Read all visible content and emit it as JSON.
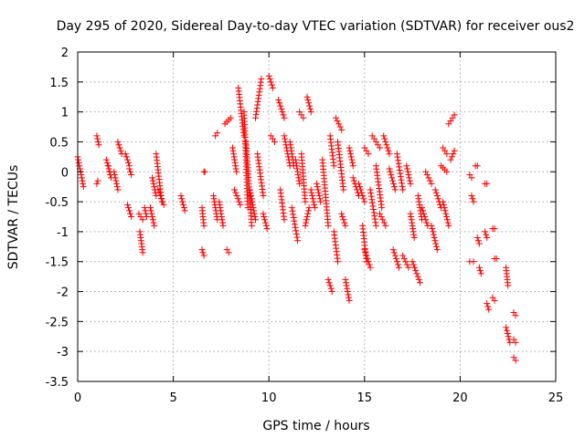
{
  "chart_data": {
    "type": "scatter",
    "title": "Day 295 of 2020, Sidereal Day-to-day VTEC variation (SDTVAR) for receiver ous2",
    "xlabel": "GPS time / hours",
    "ylabel": "SDTVAR / TECUs",
    "xlim": [
      0,
      25
    ],
    "ylim": [
      -3.5,
      2
    ],
    "xticks": [
      0,
      5,
      10,
      15,
      20,
      25
    ],
    "xtick_labels": [
      "0",
      "5",
      "10",
      "15",
      "20",
      "25"
    ],
    "yticks": [
      -3.5,
      -3,
      -2.5,
      -2,
      -1.5,
      -1,
      -0.5,
      0,
      0.5,
      1,
      1.5,
      2
    ],
    "ytick_labels": [
      "-3.5",
      "-3",
      "-2.5",
      "-2",
      "-1.5",
      "-1",
      "-0.5",
      "0",
      "0.5",
      "1",
      "1.5",
      "2"
    ],
    "grid": true,
    "marker": "+",
    "marker_color": "#ff0000",
    "segments": [
      [
        0.0,
        0.25,
        0.3,
        -0.25
      ],
      [
        1.0,
        0.6,
        1.1,
        0.45
      ],
      [
        1.0,
        -0.2,
        1.05,
        -0.15
      ],
      [
        1.5,
        0.2,
        1.75,
        -0.1
      ],
      [
        1.6,
        0.1,
        1.7,
        -0.05
      ],
      [
        1.9,
        0.0,
        2.1,
        -0.3
      ],
      [
        2.1,
        0.5,
        2.3,
        0.3
      ],
      [
        2.5,
        0.3,
        2.7,
        0.1
      ],
      [
        2.6,
        -0.55,
        2.8,
        -0.75
      ],
      [
        2.7,
        0.05,
        2.8,
        -0.05
      ],
      [
        3.2,
        -0.7,
        3.4,
        -0.8
      ],
      [
        3.25,
        -1.0,
        3.4,
        -1.35
      ],
      [
        3.5,
        -0.6,
        3.6,
        -0.75
      ],
      [
        3.8,
        -0.6,
        4.0,
        -0.9
      ],
      [
        3.9,
        -0.1,
        4.1,
        -0.4
      ],
      [
        4.1,
        0.3,
        4.4,
        -0.5
      ],
      [
        4.2,
        -0.3,
        4.5,
        -0.55
      ],
      [
        5.4,
        -0.4,
        5.6,
        -0.65
      ],
      [
        6.5,
        -1.3,
        6.6,
        -1.4
      ],
      [
        6.6,
        0.0,
        6.65,
        0.0
      ],
      [
        6.5,
        -0.6,
        6.6,
        -0.9
      ],
      [
        7.2,
        0.6,
        7.3,
        0.65
      ],
      [
        7.1,
        -0.4,
        7.3,
        -0.8
      ],
      [
        7.4,
        -0.5,
        7.6,
        -0.9
      ],
      [
        7.8,
        -1.3,
        7.9,
        -1.35
      ],
      [
        7.7,
        0.8,
        8.0,
        0.9
      ],
      [
        8.1,
        0.4,
        8.3,
        0.0
      ],
      [
        8.2,
        -0.3,
        8.5,
        -0.55
      ],
      [
        8.4,
        1.4,
        8.7,
        0.6
      ],
      [
        8.7,
        1.0,
        8.9,
        -0.6
      ],
      [
        8.8,
        0.5,
        9.1,
        -0.9
      ],
      [
        9.0,
        -0.3,
        9.3,
        -0.8
      ],
      [
        9.3,
        0.9,
        9.6,
        1.55
      ],
      [
        9.4,
        0.3,
        9.7,
        -0.4
      ],
      [
        9.7,
        -0.7,
        9.9,
        -0.95
      ],
      [
        10.0,
        1.6,
        10.2,
        1.4
      ],
      [
        10.1,
        0.6,
        10.3,
        0.5
      ],
      [
        10.5,
        1.2,
        10.8,
        0.9
      ],
      [
        10.6,
        -0.3,
        10.8,
        -0.8
      ],
      [
        10.8,
        0.6,
        11.1,
        0.1
      ],
      [
        11.1,
        0.5,
        11.3,
        0.1
      ],
      [
        11.2,
        -0.6,
        11.5,
        -1.15
      ],
      [
        11.4,
        0.2,
        11.6,
        -0.2
      ],
      [
        11.6,
        1.0,
        11.8,
        0.9
      ],
      [
        11.7,
        0.3,
        11.9,
        -0.5
      ],
      [
        11.9,
        -0.9,
        12.1,
        -0.6
      ],
      [
        12.0,
        1.25,
        12.2,
        1.0
      ],
      [
        12.2,
        -0.3,
        12.4,
        -0.6
      ],
      [
        12.5,
        -0.2,
        12.7,
        -0.5
      ],
      [
        12.8,
        0.2,
        13.1,
        -0.9
      ],
      [
        13.1,
        -1.8,
        13.3,
        -2.0
      ],
      [
        13.2,
        0.6,
        13.4,
        0.1
      ],
      [
        13.4,
        -1.0,
        13.6,
        -1.5
      ],
      [
        13.5,
        0.9,
        13.8,
        0.7
      ],
      [
        13.6,
        0.5,
        13.9,
        -0.3
      ],
      [
        13.8,
        -0.7,
        14.0,
        -0.9
      ],
      [
        14.0,
        -1.8,
        14.2,
        -2.15
      ],
      [
        14.2,
        0.4,
        14.4,
        0.1
      ],
      [
        14.4,
        -0.1,
        14.7,
        -0.4
      ],
      [
        14.7,
        -0.2,
        15.0,
        -0.5
      ],
      [
        14.9,
        -0.9,
        15.1,
        -1.5
      ],
      [
        15.0,
        -1.3,
        15.3,
        -1.6
      ],
      [
        15.0,
        0.4,
        15.2,
        0.3
      ],
      [
        15.3,
        -0.3,
        15.6,
        -0.9
      ],
      [
        15.4,
        0.6,
        15.8,
        0.4
      ],
      [
        15.6,
        0.1,
        15.9,
        -0.6
      ],
      [
        15.8,
        -0.7,
        16.1,
        -0.9
      ],
      [
        16.0,
        0.6,
        16.3,
        0.3
      ],
      [
        16.3,
        0.05,
        16.6,
        -0.3
      ],
      [
        16.5,
        -1.3,
        16.8,
        -1.6
      ],
      [
        16.7,
        0.3,
        17.0,
        -0.3
      ],
      [
        17.0,
        -1.4,
        17.3,
        -1.6
      ],
      [
        17.2,
        0.1,
        17.4,
        -0.2
      ],
      [
        17.4,
        -0.7,
        17.6,
        -1.1
      ],
      [
        17.5,
        -1.5,
        17.9,
        -1.85
      ],
      [
        17.8,
        -0.4,
        18.0,
        -0.8
      ],
      [
        18.0,
        -0.6,
        18.3,
        -0.9
      ],
      [
        18.2,
        0.0,
        18.5,
        -0.2
      ],
      [
        18.5,
        -0.9,
        18.8,
        -1.3
      ],
      [
        18.7,
        -0.3,
        19.0,
        -0.6
      ],
      [
        19.0,
        0.1,
        19.3,
        0.0
      ],
      [
        19.1,
        0.4,
        19.3,
        0.3
      ],
      [
        19.4,
        0.8,
        19.7,
        0.95
      ],
      [
        19.5,
        0.2,
        19.7,
        0.35
      ],
      [
        19.1,
        -0.5,
        19.4,
        -0.9
      ],
      [
        20.5,
        -0.05,
        20.6,
        -0.1
      ],
      [
        20.5,
        -1.5,
        20.7,
        -1.5
      ],
      [
        20.6,
        -0.4,
        20.7,
        -0.5
      ],
      [
        20.8,
        0.1,
        20.9,
        0.1
      ],
      [
        20.9,
        -1.1,
        21.0,
        -1.2
      ],
      [
        21.0,
        -1.6,
        21.1,
        -1.7
      ],
      [
        21.3,
        -1.0,
        21.4,
        -1.1
      ],
      [
        21.3,
        -0.2,
        21.4,
        -0.2
      ],
      [
        21.4,
        -2.2,
        21.5,
        -2.3
      ],
      [
        21.7,
        -0.95,
        21.8,
        -0.95
      ],
      [
        21.7,
        -2.1,
        21.8,
        -2.15
      ],
      [
        21.8,
        -1.45,
        21.9,
        -1.45
      ],
      [
        22.4,
        -1.6,
        22.5,
        -1.9
      ],
      [
        22.4,
        -2.6,
        22.6,
        -2.85
      ],
      [
        22.8,
        -2.35,
        22.9,
        -2.4
      ],
      [
        22.8,
        -2.8,
        22.9,
        -2.85
      ],
      [
        22.8,
        -3.1,
        22.9,
        -3.15
      ]
    ]
  }
}
